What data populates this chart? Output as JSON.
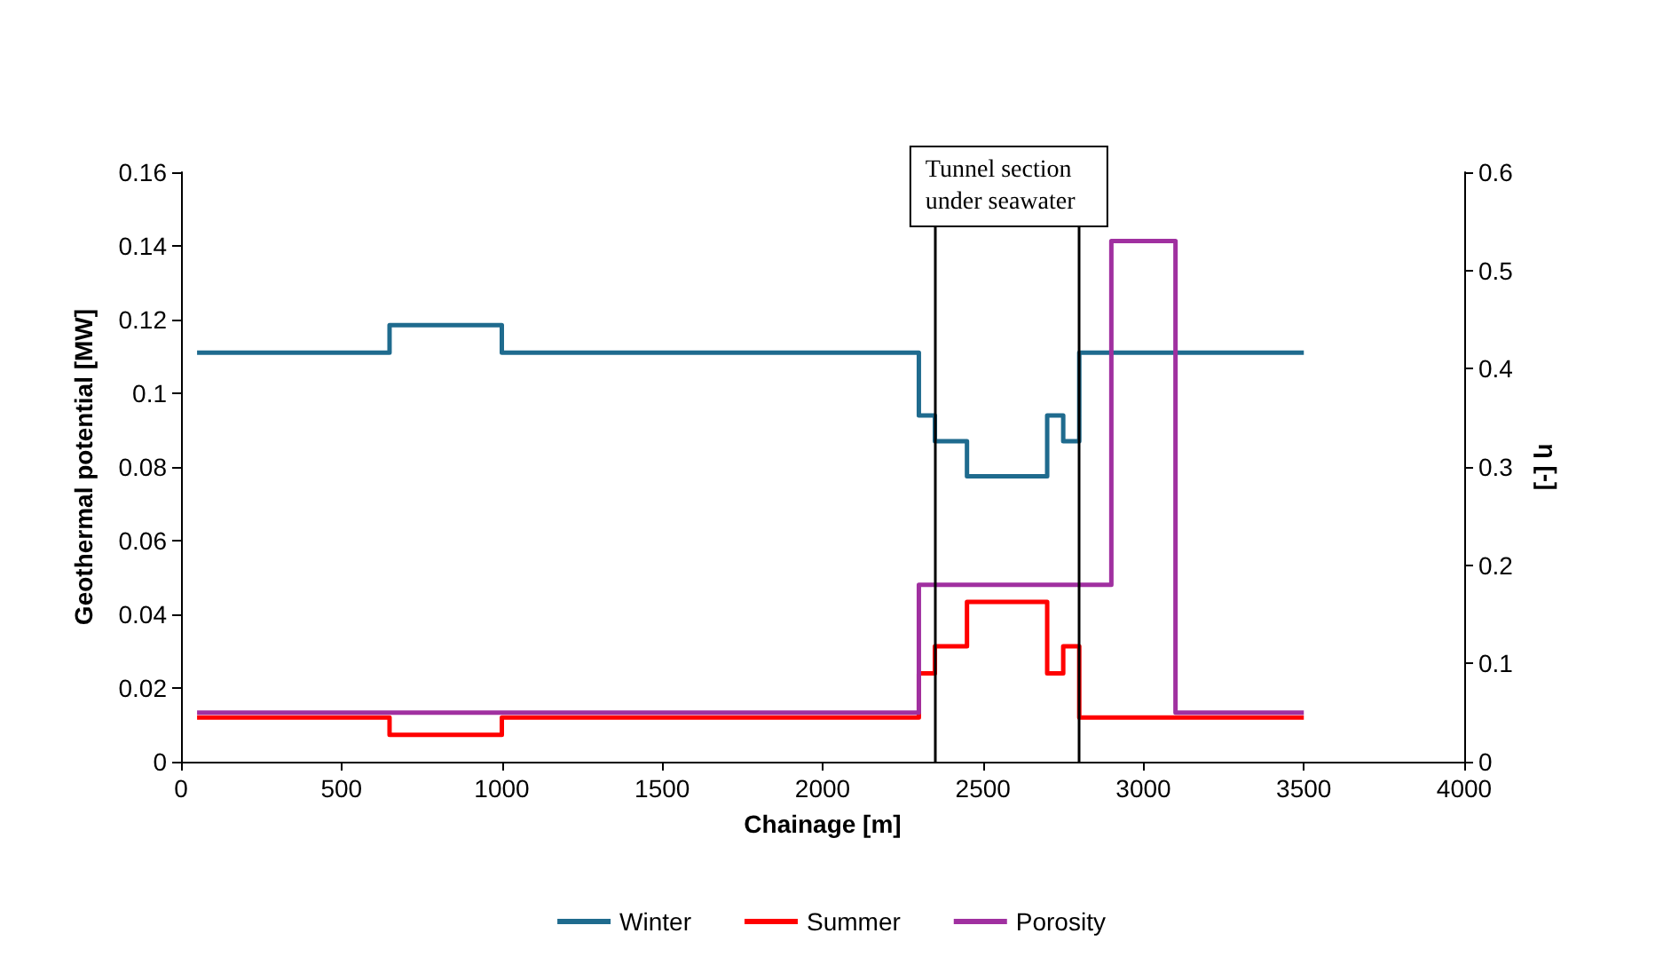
{
  "chart_data": {
    "type": "step",
    "xlabel": "Chainage [m]",
    "ylabel": "Geothermal potential [MW]",
    "y2label": "η [-]",
    "xlim": [
      0,
      4000
    ],
    "xticks": [
      0,
      500,
      1000,
      1500,
      2000,
      2500,
      3000,
      3500,
      4000
    ],
    "ylim": [
      0,
      0.16
    ],
    "yticks": [
      0,
      0.02,
      0.04,
      0.06,
      0.08,
      0.1,
      0.12,
      0.14,
      0.16
    ],
    "y2lim": [
      0,
      0.6
    ],
    "y2ticks": [
      0,
      0.1,
      0.2,
      0.3,
      0.4,
      0.5,
      0.6
    ],
    "series": [
      {
        "name": "Winter",
        "color": "#1f6b8e",
        "x": [
          50,
          650,
          1000,
          2300,
          2350,
          2450,
          2700,
          2750,
          2800,
          3500
        ],
        "values": [
          0.111,
          0.1185,
          0.111,
          0.094,
          0.087,
          0.0775,
          0.094,
          0.087,
          0.111,
          0.111
        ]
      },
      {
        "name": "Summer",
        "color": "#ff0000",
        "x": [
          50,
          650,
          1000,
          2300,
          2350,
          2450,
          2700,
          2750,
          2800,
          3500
        ],
        "values": [
          0.012,
          0.0073,
          0.012,
          0.024,
          0.0313,
          0.0434,
          0.024,
          0.0313,
          0.012,
          0.012
        ]
      },
      {
        "name": "Porosity",
        "color": "#a030a0",
        "axis": "y2",
        "x": [
          50,
          2300,
          2900,
          3100,
          3500
        ],
        "values": [
          0.05,
          0.18,
          0.53,
          0.05,
          0.05
        ]
      }
    ],
    "ref_lines": [
      {
        "axis": "x",
        "value": 2350,
        "color": "#000000"
      },
      {
        "axis": "x",
        "value": 2800,
        "color": "#000000"
      }
    ],
    "annotations": [
      "Tunnel section\nunder seawater"
    ],
    "grid": false,
    "legend": "bottom"
  }
}
